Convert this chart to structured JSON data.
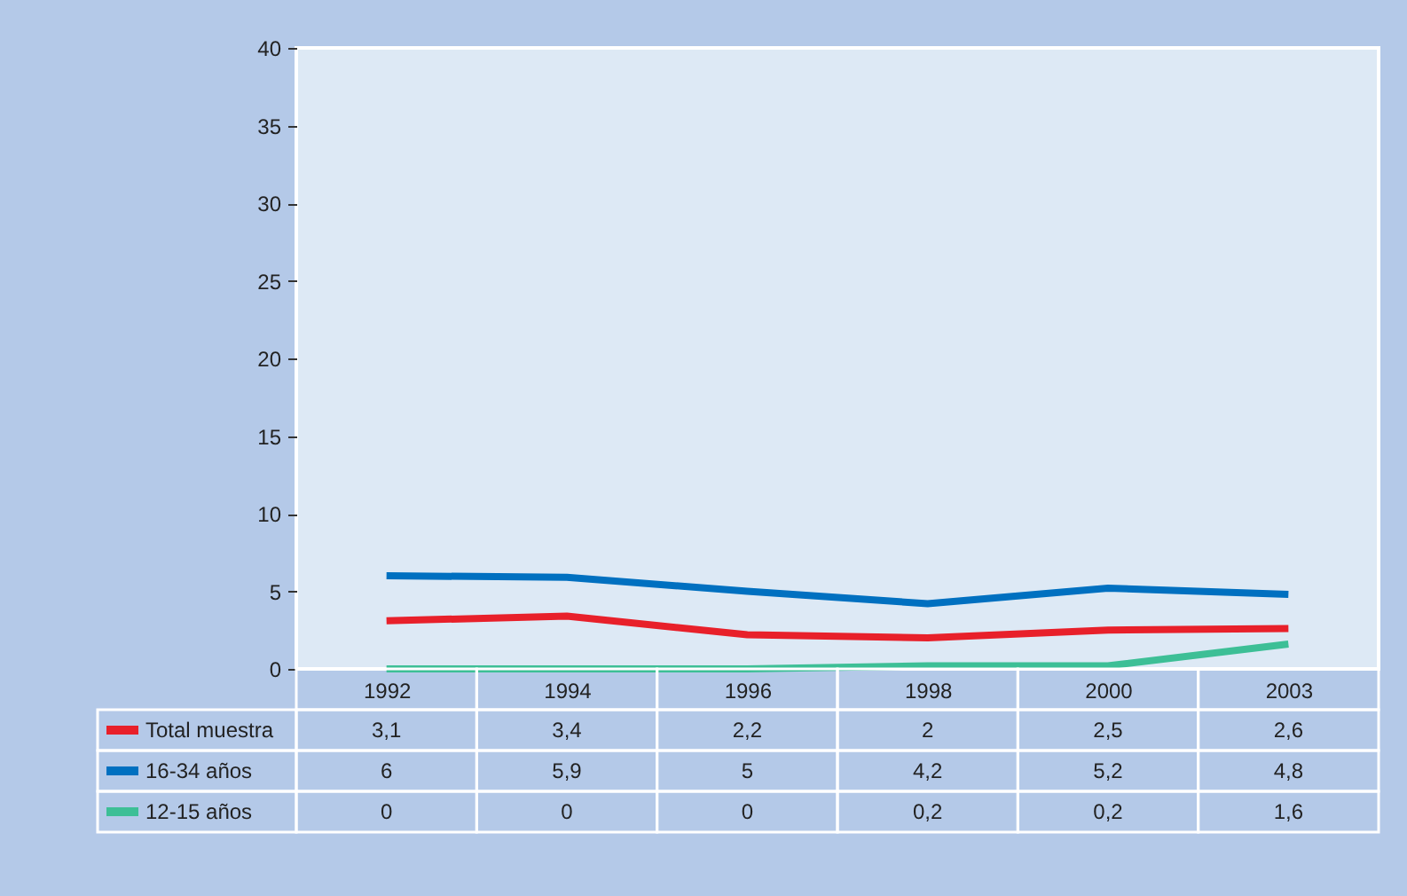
{
  "chart_data": {
    "type": "line",
    "categories": [
      "1992",
      "1994",
      "1996",
      "1998",
      "2000",
      "2003"
    ],
    "series": [
      {
        "name": "Total muestra",
        "color": "#e8202a",
        "values": [
          3.1,
          3.4,
          2.2,
          2,
          2.5,
          2.6
        ],
        "value_labels": [
          "3,1",
          "3,4",
          "2,2",
          "2",
          "2,5",
          "2,6"
        ]
      },
      {
        "name": "16-34 años",
        "color": "#0070c0",
        "values": [
          6,
          5.9,
          5,
          4.2,
          5.2,
          4.8
        ],
        "value_labels": [
          "6",
          "5,9",
          "5",
          "4,2",
          "5,2",
          "4,8"
        ]
      },
      {
        "name": "12-15 años",
        "color": "#3dbf96",
        "values": [
          0,
          0,
          0,
          0.2,
          0.2,
          1.6
        ],
        "value_labels": [
          "0",
          "0",
          "0",
          "0,2",
          "0,2",
          "1,6"
        ]
      }
    ],
    "ylim": [
      0,
      40
    ],
    "yticks": [
      0,
      5,
      10,
      15,
      20,
      25,
      30,
      35,
      40
    ],
    "grid": false,
    "legend": "bottom",
    "marker": "none",
    "line_style": "solid"
  }
}
